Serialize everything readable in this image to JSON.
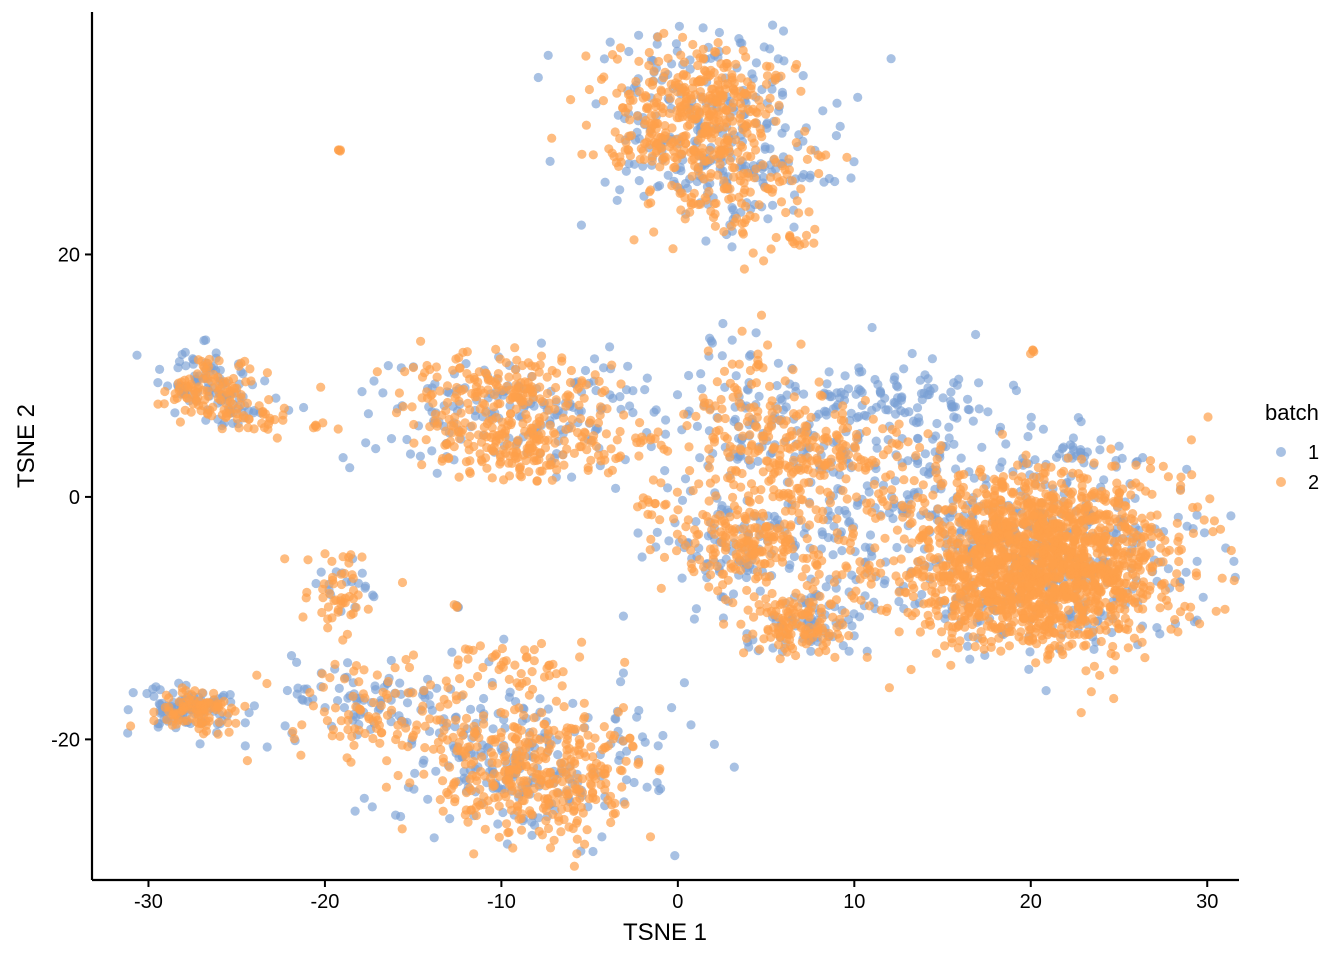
{
  "chart_data": {
    "type": "scatter",
    "xlabel": "TSNE 1",
    "ylabel": "TSNE 2",
    "xlim": [
      -33.2,
      31.8
    ],
    "ylim": [
      -31.6,
      40.0
    ],
    "xticks": [
      -30,
      -20,
      -10,
      0,
      10,
      20,
      30
    ],
    "xtick_labels": [
      "-30",
      "-20",
      "-10",
      "0",
      "10",
      "20",
      "30"
    ],
    "yticks": [
      -20,
      0,
      20
    ],
    "ytick_labels": [
      "-20",
      "0",
      "20"
    ],
    "grid": false,
    "legend": {
      "title": "batch",
      "placement": "right"
    },
    "series": [
      {
        "name": "1",
        "color": "#7AA0D4",
        "opacity": 0.65,
        "clusters": [
          {
            "cx": 1.5,
            "cy": 31.0,
            "sx": 3.6,
            "sy": 4.0,
            "n": 220
          },
          {
            "cx": 3.5,
            "cy": 26.5,
            "sx": 2.5,
            "sy": 2.2,
            "n": 60
          },
          {
            "cx": -27.0,
            "cy": 9.5,
            "sx": 1.4,
            "sy": 1.3,
            "n": 70
          },
          {
            "cx": -25.0,
            "cy": 7.0,
            "sx": 1.3,
            "sy": 0.7,
            "n": 25
          },
          {
            "cx": -9.0,
            "cy": 7.2,
            "sx": 4.5,
            "sy": 2.3,
            "n": 170
          },
          {
            "cx": -28.0,
            "cy": -17.5,
            "sx": 1.4,
            "sy": 1.0,
            "n": 90
          },
          {
            "cx": -17.0,
            "cy": -17.0,
            "sx": 3.5,
            "sy": 1.5,
            "n": 90
          },
          {
            "cx": -9.0,
            "cy": -22.0,
            "sx": 3.8,
            "sy": 3.3,
            "n": 220
          },
          {
            "cx": 8.5,
            "cy": 5.5,
            "sx": 5.0,
            "sy": 3.0,
            "n": 200
          },
          {
            "cx": 13.0,
            "cy": 8.0,
            "sx": 3.0,
            "sy": 1.2,
            "n": 60
          },
          {
            "cx": 3.5,
            "cy": -4.0,
            "sx": 2.5,
            "sy": 2.3,
            "n": 80
          },
          {
            "cx": 7.0,
            "cy": -10.5,
            "sx": 1.8,
            "sy": 1.5,
            "n": 60
          },
          {
            "cx": 12.0,
            "cy": -4.0,
            "sx": 5.5,
            "sy": 4.5,
            "n": 160
          },
          {
            "cx": 21.0,
            "cy": -4.5,
            "sx": 4.5,
            "sy": 4.0,
            "n": 340
          },
          {
            "cx": 23.0,
            "cy": 3.5,
            "sx": 1.5,
            "sy": 0.6,
            "n": 25
          },
          {
            "cx": -19.0,
            "cy": -7.5,
            "sx": 1.2,
            "sy": 1.2,
            "n": 18
          },
          {
            "cx": 2.5,
            "cy": 14.0,
            "sx": 0.6,
            "sy": 1.2,
            "n": 6
          },
          {
            "cx": -12.5,
            "cy": -9.0,
            "sx": 0.1,
            "sy": 0.1,
            "n": 3
          }
        ]
      },
      {
        "name": "2",
        "color": "#FDA04A",
        "opacity": 0.7,
        "clusters": [
          {
            "cx": 1.5,
            "cy": 32.0,
            "sx": 2.5,
            "sy": 2.5,
            "n": 330
          },
          {
            "cx": 3.5,
            "cy": 25.5,
            "sx": 2.2,
            "sy": 2.2,
            "n": 130
          },
          {
            "cx": -1.5,
            "cy": 28.5,
            "sx": 2.0,
            "sy": 1.0,
            "n": 50
          },
          {
            "cx": 6.5,
            "cy": 21.3,
            "sx": 0.5,
            "sy": 0.4,
            "n": 10
          },
          {
            "cx": -19.2,
            "cy": 28.5,
            "sx": 0.1,
            "sy": 0.1,
            "n": 4
          },
          {
            "cx": -26.5,
            "cy": 9.0,
            "sx": 1.3,
            "sy": 1.2,
            "n": 90
          },
          {
            "cx": -24.0,
            "cy": 6.5,
            "sx": 1.4,
            "sy": 0.7,
            "n": 40
          },
          {
            "cx": -10.0,
            "cy": 9.0,
            "sx": 3.0,
            "sy": 1.5,
            "n": 160
          },
          {
            "cx": -7.0,
            "cy": 5.0,
            "sx": 3.2,
            "sy": 1.6,
            "n": 160
          },
          {
            "cx": -10.5,
            "cy": 3.5,
            "sx": 2.0,
            "sy": 1.0,
            "n": 60
          },
          {
            "cx": -27.5,
            "cy": -17.8,
            "sx": 1.3,
            "sy": 0.8,
            "n": 90
          },
          {
            "cx": -19.0,
            "cy": -8.0,
            "sx": 1.2,
            "sy": 1.8,
            "n": 50
          },
          {
            "cx": -16.0,
            "cy": -18.0,
            "sx": 2.8,
            "sy": 2.2,
            "n": 120
          },
          {
            "cx": -8.0,
            "cy": -23.0,
            "sx": 3.0,
            "sy": 3.0,
            "n": 360
          },
          {
            "cx": -8.5,
            "cy": -13.5,
            "sx": 2.0,
            "sy": 1.0,
            "n": 40
          },
          {
            "cx": -12.5,
            "cy": -9.0,
            "sx": 0.1,
            "sy": 0.1,
            "n": 3
          },
          {
            "cx": 4.0,
            "cy": 7.0,
            "sx": 2.0,
            "sy": 4.0,
            "n": 80
          },
          {
            "cx": 7.5,
            "cy": 3.5,
            "sx": 3.0,
            "sy": 2.0,
            "n": 200
          },
          {
            "cx": 3.5,
            "cy": -4.0,
            "sx": 2.0,
            "sy": 1.8,
            "n": 160
          },
          {
            "cx": 7.0,
            "cy": -10.5,
            "sx": 1.5,
            "sy": 1.2,
            "n": 120
          },
          {
            "cx": 12.0,
            "cy": -4.0,
            "sx": 5.0,
            "sy": 4.0,
            "n": 160
          },
          {
            "cx": 21.0,
            "cy": -5.0,
            "sx": 3.5,
            "sy": 3.5,
            "n": 1400
          },
          {
            "cx": 19.0,
            "cy": -9.0,
            "sx": 2.5,
            "sy": 2.0,
            "n": 200
          },
          {
            "cx": 20.2,
            "cy": 12.0,
            "sx": 0.1,
            "sy": 0.1,
            "n": 4
          },
          {
            "cx": -1.5,
            "cy": -0.5,
            "sx": 0.8,
            "sy": 1.0,
            "n": 15
          },
          {
            "cx": -20.5,
            "cy": 5.8,
            "sx": 0.3,
            "sy": 0.2,
            "n": 5
          }
        ]
      }
    ]
  }
}
